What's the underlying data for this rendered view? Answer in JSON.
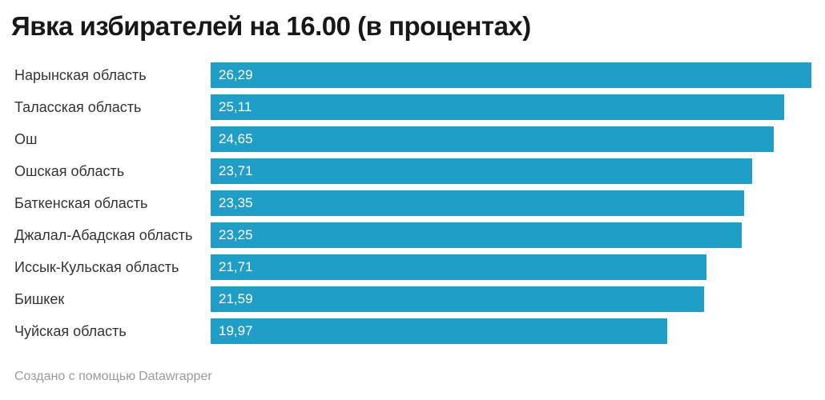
{
  "chart_data": {
    "type": "bar",
    "orientation": "horizontal",
    "title": "Явка избирателей на 16.00 (в процентах)",
    "categories": [
      "Нарынская область",
      "Таласская область",
      "Ош",
      "Ошская область",
      "Баткенская область",
      "Джалал-Абадская область",
      "Иссык-Кульская область",
      "Бишкек",
      "Чуйская область"
    ],
    "values": [
      26.29,
      25.11,
      24.65,
      23.71,
      23.35,
      23.25,
      21.71,
      21.59,
      19.97
    ],
    "value_labels": [
      "26,29",
      "25,11",
      "24,65",
      "23,71",
      "23,35",
      "23,25",
      "21,71",
      "21,59",
      "19,97"
    ],
    "xlabel": "",
    "ylabel": "",
    "xlim": [
      0,
      26.29
    ],
    "grid": false,
    "legend": false,
    "value_labels_position": "inside-start",
    "bar_color": "#1f9fc8",
    "value_label_color": "#ffffff",
    "title_color": "#181818",
    "category_label_color": "#333333"
  },
  "footer": {
    "prefix": "Создано с помощью",
    "link_label": "Datawrapper",
    "color": "#9b9b9b"
  }
}
